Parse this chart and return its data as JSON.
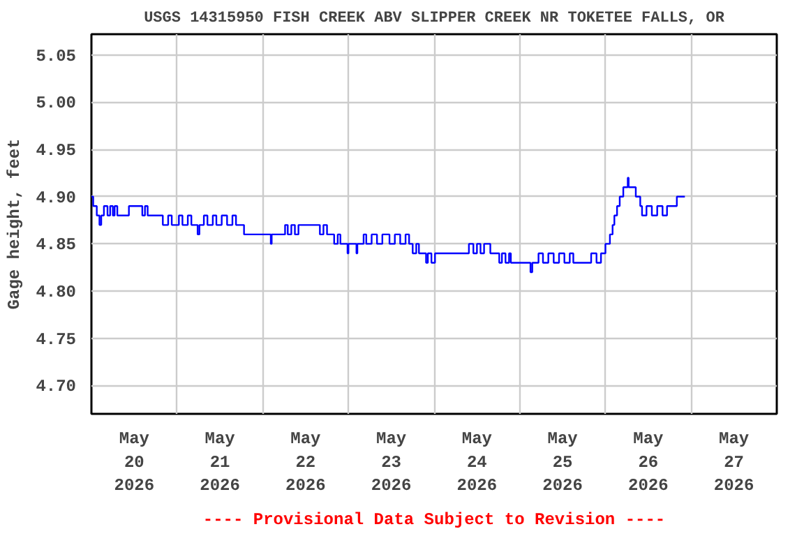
{
  "chart_data": {
    "type": "step",
    "title": "USGS 14315950 FISH CREEK ABV SLIPPER CREEK NR TOKETEE FALLS, OR",
    "ylabel": "Gage height, feet",
    "annotations": [
      "---- Provisional Data Subject to Revision ----"
    ],
    "x": [
      "2026-05-20T00:00",
      "2026-05-20T00:30",
      "2026-05-20T01:30",
      "2026-05-20T02:15",
      "2026-05-20T02:45",
      "2026-05-20T03:30",
      "2026-05-20T04:30",
      "2026-05-20T05:15",
      "2026-05-20T06:00",
      "2026-05-20T06:30",
      "2026-05-20T07:15",
      "2026-05-20T10:30",
      "2026-05-20T14:15",
      "2026-05-20T15:00",
      "2026-05-20T15:45",
      "2026-05-20T20:00",
      "2026-05-20T21:30",
      "2026-05-20T22:30",
      "2026-05-21T00:30",
      "2026-05-21T01:30",
      "2026-05-21T03:00",
      "2026-05-21T04:00",
      "2026-05-21T05:45",
      "2026-05-21T06:15",
      "2026-05-21T07:30",
      "2026-05-21T08:30",
      "2026-05-21T10:00",
      "2026-05-21T11:00",
      "2026-05-21T12:30",
      "2026-05-21T14:00",
      "2026-05-21T15:30",
      "2026-05-21T16:30",
      "2026-05-21T18:45",
      "2026-05-22T02:15",
      "2026-05-22T02:30",
      "2026-05-22T06:15",
      "2026-05-22T07:00",
      "2026-05-22T08:00",
      "2026-05-22T09:00",
      "2026-05-22T10:00",
      "2026-05-22T16:00",
      "2026-05-22T17:00",
      "2026-05-22T18:00",
      "2026-05-22T20:00",
      "2026-05-22T21:00",
      "2026-05-22T21:45",
      "2026-05-22T23:45",
      "2026-05-23T00:00",
      "2026-05-23T02:15",
      "2026-05-23T02:30",
      "2026-05-23T04:15",
      "2026-05-23T05:00",
      "2026-05-23T06:30",
      "2026-05-23T08:00",
      "2026-05-23T09:30",
      "2026-05-23T11:30",
      "2026-05-23T13:00",
      "2026-05-23T14:30",
      "2026-05-23T16:00",
      "2026-05-23T17:00",
      "2026-05-23T18:00",
      "2026-05-23T19:00",
      "2026-05-23T19:45",
      "2026-05-23T21:45",
      "2026-05-23T22:15",
      "2026-05-23T23:15",
      "2026-05-24T00:15",
      "2026-05-24T09:45",
      "2026-05-24T11:00",
      "2026-05-24T12:00",
      "2026-05-24T13:00",
      "2026-05-24T14:00",
      "2026-05-24T15:45",
      "2026-05-24T18:15",
      "2026-05-24T19:00",
      "2026-05-24T20:00",
      "2026-05-24T21:00",
      "2026-05-24T21:30",
      "2026-05-25T03:00",
      "2026-05-25T03:30",
      "2026-05-25T05:15",
      "2026-05-25T06:30",
      "2026-05-25T08:00",
      "2026-05-25T09:30",
      "2026-05-25T11:00",
      "2026-05-25T12:30",
      "2026-05-25T14:00",
      "2026-05-25T15:00",
      "2026-05-25T20:00",
      "2026-05-25T21:30",
      "2026-05-25T22:45",
      "2026-05-26T00:00",
      "2026-05-26T01:15",
      "2026-05-26T02:00",
      "2026-05-26T02:30",
      "2026-05-26T03:15",
      "2026-05-26T04:00",
      "2026-05-26T05:00",
      "2026-05-26T06:15",
      "2026-05-26T06:30",
      "2026-05-26T08:30",
      "2026-05-26T09:45",
      "2026-05-26T10:15",
      "2026-05-26T11:30",
      "2026-05-26T13:00",
      "2026-05-26T14:30",
      "2026-05-26T16:00",
      "2026-05-26T17:15",
      "2026-05-26T20:00",
      "2026-05-26T22:15"
    ],
    "series": [
      {
        "color": "#0000ff",
        "values": [
          4.9,
          4.89,
          4.88,
          4.87,
          4.88,
          4.89,
          4.88,
          4.89,
          4.88,
          4.89,
          4.88,
          4.89,
          4.88,
          4.89,
          4.88,
          4.87,
          4.88,
          4.87,
          4.88,
          4.87,
          4.88,
          4.87,
          4.86,
          4.87,
          4.88,
          4.87,
          4.88,
          4.87,
          4.88,
          4.87,
          4.88,
          4.87,
          4.86,
          4.85,
          4.86,
          4.87,
          4.86,
          4.87,
          4.86,
          4.87,
          4.86,
          4.87,
          4.86,
          4.85,
          4.86,
          4.85,
          4.84,
          4.85,
          4.84,
          4.85,
          4.86,
          4.85,
          4.86,
          4.85,
          4.86,
          4.85,
          4.86,
          4.85,
          4.86,
          4.85,
          4.84,
          4.85,
          4.84,
          4.83,
          4.84,
          4.83,
          4.84,
          4.85,
          4.84,
          4.85,
          4.84,
          4.85,
          4.84,
          4.83,
          4.84,
          4.83,
          4.84,
          4.83,
          4.82,
          4.83,
          4.84,
          4.83,
          4.84,
          4.83,
          4.84,
          4.83,
          4.84,
          4.83,
          4.84,
          4.83,
          4.84,
          4.85,
          4.86,
          4.87,
          4.88,
          4.89,
          4.9,
          4.91,
          4.92,
          4.91,
          4.9,
          4.89,
          4.88,
          4.89,
          4.88,
          4.89,
          4.88,
          4.89,
          4.9,
          4.9
        ]
      }
    ],
    "xlim": [
      "2026-05-20T00:00",
      "2026-05-28T00:00"
    ],
    "xticks": [
      {
        "value": "2026-05-20T12:00",
        "label": "May\n20\n2026"
      },
      {
        "value": "2026-05-21T00:00",
        "label": null
      },
      {
        "value": "2026-05-21T12:00",
        "label": "May\n21\n2026"
      },
      {
        "value": "2026-05-22T00:00",
        "label": null
      },
      {
        "value": "2026-05-22T12:00",
        "label": "May\n22\n2026"
      },
      {
        "value": "2026-05-23T00:00",
        "label": null
      },
      {
        "value": "2026-05-23T12:00",
        "label": "May\n23\n2026"
      },
      {
        "value": "2026-05-24T00:00",
        "label": null
      },
      {
        "value": "2026-05-24T12:00",
        "label": "May\n24\n2026"
      },
      {
        "value": "2026-05-25T00:00",
        "label": null
      },
      {
        "value": "2026-05-25T12:00",
        "label": "May\n25\n2026"
      },
      {
        "value": "2026-05-26T00:00",
        "label": null
      },
      {
        "value": "2026-05-26T12:00",
        "label": "May\n26\n2026"
      },
      {
        "value": "2026-05-27T00:00",
        "label": null
      },
      {
        "value": "2026-05-27T12:00",
        "label": "May\n27\n2026"
      }
    ],
    "ylim": [
      4.67,
      5.072
    ],
    "yticks": [
      {
        "value": 4.7,
        "label": "4.70"
      },
      {
        "value": 4.75,
        "label": "4.75"
      },
      {
        "value": 4.8,
        "label": "4.80"
      },
      {
        "value": 4.85,
        "label": "4.85"
      },
      {
        "value": 4.9,
        "label": "4.90"
      },
      {
        "value": 4.95,
        "label": "4.95"
      },
      {
        "value": 5.0,
        "label": "5.00"
      },
      {
        "value": 5.05,
        "label": "5.05"
      }
    ],
    "grid": true,
    "marker": "none",
    "line_style": "solid"
  }
}
